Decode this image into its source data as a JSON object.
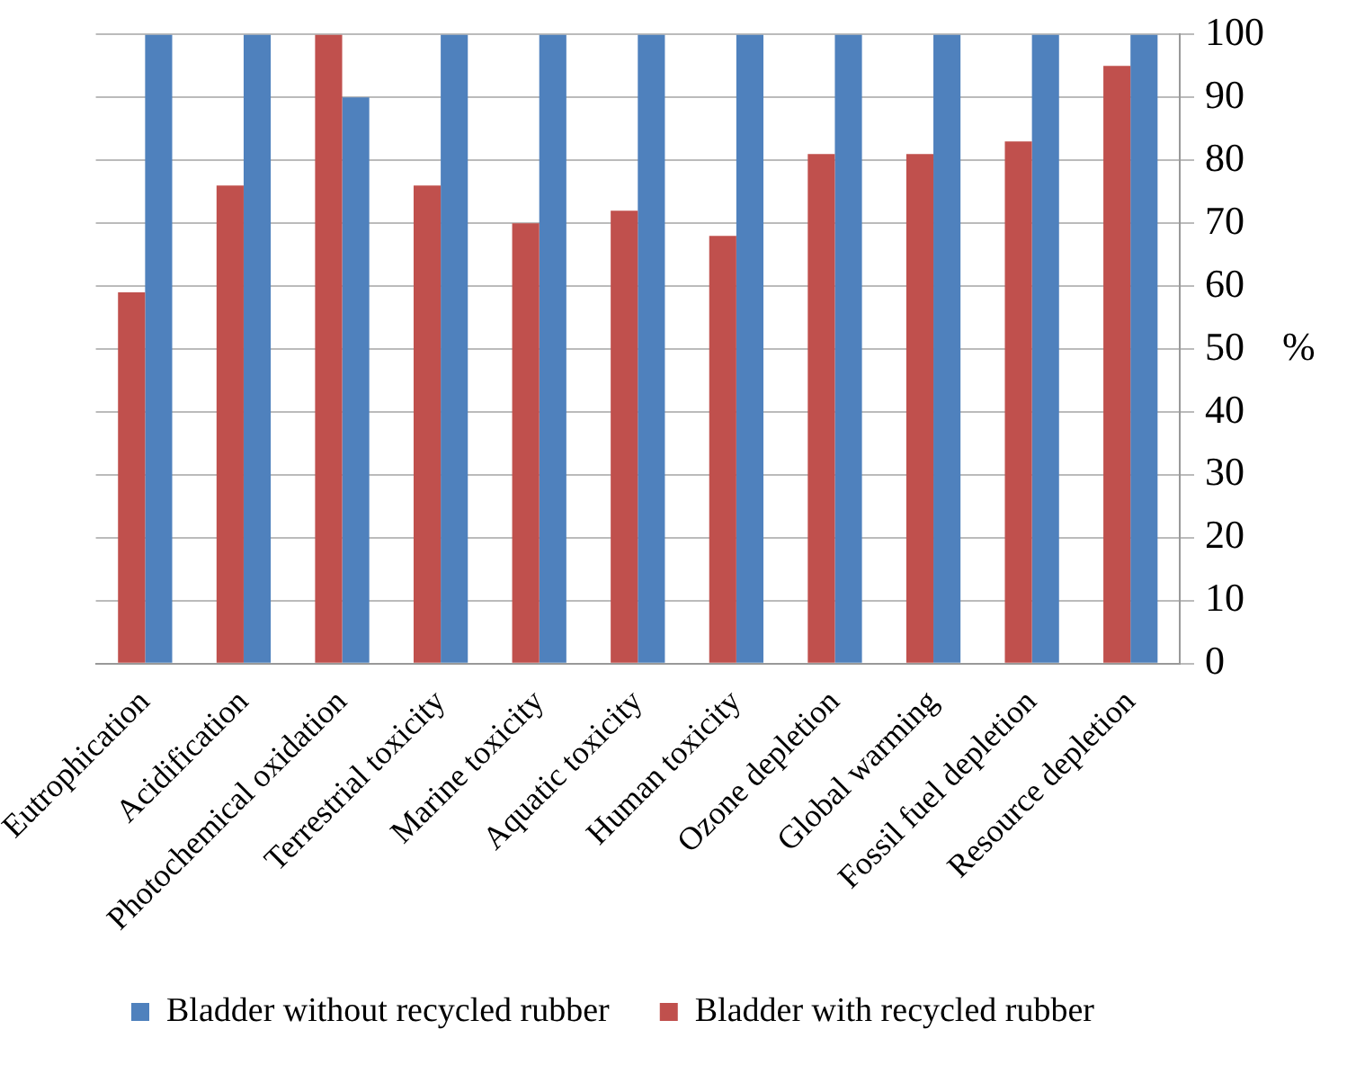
{
  "chart_data": {
    "type": "bar",
    "ylabel": "%",
    "categories": [
      "Eutrophication",
      "Acidification",
      "Photochemical oxidation",
      "Terrestrial toxicity",
      "Marine toxicity",
      "Aquatic toxicity",
      "Human toxicity",
      "Ozone depletion",
      "Global warming",
      "Fossil fuel depletion",
      "Resource depletion"
    ],
    "series": [
      {
        "name": "Bladder with recycled rubber",
        "color": "#c0504d",
        "values": [
          59,
          76,
          100,
          76,
          70,
          72,
          68,
          81,
          81,
          83,
          95
        ]
      },
      {
        "name": "Bladder without recycled rubber",
        "color": "#4f81bd",
        "values": [
          100,
          100,
          90,
          100,
          100,
          100,
          100,
          100,
          100,
          100,
          100
        ]
      }
    ],
    "ylim": [
      0,
      100
    ],
    "yticks": [
      0,
      10,
      20,
      30,
      40,
      50,
      60,
      70,
      80,
      90,
      100
    ],
    "grid": "y",
    "legend": "bottom"
  }
}
